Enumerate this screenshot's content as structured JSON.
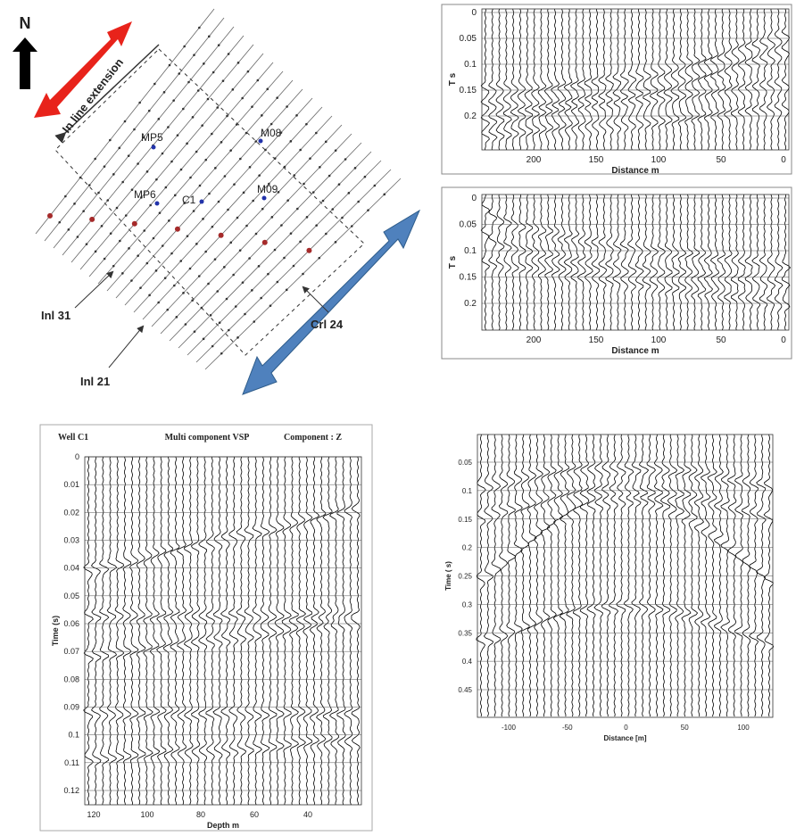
{
  "map": {
    "north": "N",
    "inline_extension": "In line extension",
    "stations": [
      "MP5",
      "M08",
      "MP6",
      "C1",
      "M09"
    ],
    "line_labels": [
      "Inl 31",
      "Inl 21",
      "Crl 24"
    ]
  },
  "section_top": {
    "yticks": [
      0,
      0.05,
      0.1,
      0.15,
      0.2
    ],
    "xticks": [
      200,
      150,
      100,
      50,
      0
    ],
    "ylabel": "T s",
    "xlabel": "Distance m"
  },
  "section_middle": {
    "yticks": [
      0,
      0.05,
      0.1,
      0.15,
      0.2
    ],
    "xticks": [
      200,
      150,
      100,
      50,
      0
    ],
    "ylabel": "T s",
    "xlabel": "Distance m"
  },
  "vsp": {
    "well": "Well C1",
    "title": "Multi component VSP",
    "component": "Component : Z",
    "yticks": [
      0,
      0.01,
      0.02,
      0.03,
      0.04,
      0.05,
      0.06,
      0.07,
      0.08,
      0.09,
      0.1,
      0.11,
      0.12
    ],
    "xticks": [
      120,
      100,
      80,
      60,
      40
    ],
    "ylabel": "Time (s)",
    "xlabel": "Depth m"
  },
  "section_bottom": {
    "yticks": [
      0.05,
      0.1,
      0.15,
      0.2,
      0.25,
      0.3,
      0.35,
      0.4,
      0.45
    ],
    "xticks": [
      -100,
      -50,
      0,
      50,
      100
    ],
    "ylabel": "Time ( s)",
    "xlabel": "Distance [m]"
  }
}
